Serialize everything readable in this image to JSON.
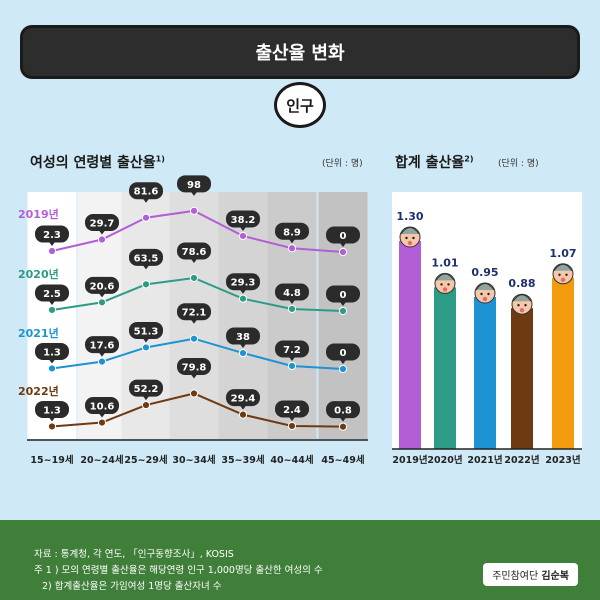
{
  "title": "출산율 변화",
  "badge": "인구",
  "left_chart": {
    "title": "여성의 연령별 출산율",
    "title_sup": "1)",
    "unit": "(단위 : 명)"
  },
  "right_chart": {
    "title": "합계 출산율",
    "title_sup": "2)",
    "unit": "(단위 : 명)"
  },
  "chart_data": [
    {
      "type": "line",
      "title": "여성의 연령별 출산율1)",
      "categories": [
        "15~19세",
        "20~24세",
        "25~29세",
        "30~34세",
        "35~39세",
        "40~44세",
        "45~49세"
      ],
      "series": [
        {
          "name": "2019년",
          "color": "#b35ed6",
          "values": [
            2.3,
            29.7,
            81.6,
            98,
            38.2,
            8.9,
            0
          ]
        },
        {
          "name": "2020년",
          "color": "#2e9b87",
          "values": [
            2.5,
            20.6,
            63.5,
            78.6,
            29.3,
            4.8,
            0
          ]
        },
        {
          "name": "2021년",
          "color": "#1d93d2",
          "values": [
            1.3,
            17.6,
            51.3,
            72.1,
            38,
            7.2,
            0
          ]
        },
        {
          "name": "2022년",
          "color": "#6e3a12",
          "values": [
            1.3,
            10.6,
            52.2,
            79.8,
            29.4,
            2.4,
            0.8
          ]
        }
      ],
      "labels": [
        "2.3",
        "29.7",
        "81.6",
        "98",
        "38.2",
        "8.9",
        "0",
        "2.5",
        "20.6",
        "63.5",
        "78.6",
        "29.3",
        "4.8",
        "0",
        "1.3",
        "17.6",
        "51.3",
        "72.1",
        "38",
        "7.2",
        "0",
        "1.3",
        "10.6",
        "52.2",
        "79.8",
        "29.4",
        "2.4",
        "0.8"
      ]
    },
    {
      "type": "bar",
      "title": "합계 출산율2)",
      "categories": [
        "2019년",
        "2020년",
        "2021년",
        "2022년",
        "2023년"
      ],
      "values": [
        1.3,
        1.01,
        0.95,
        0.88,
        1.07
      ],
      "value_labels": [
        "1.30",
        "1.01",
        "0.95",
        "0.88",
        "1.07"
      ],
      "colors": [
        "#b35ed6",
        "#2e9b87",
        "#1d93d2",
        "#6e3a12",
        "#f29b0c"
      ]
    }
  ],
  "footer": {
    "source": "자료 : 통계청, 각 연도, 「인구동향조사」, KOSIS",
    "note1": "주 1 ) 모의 연령별 출산율은 해당연령 인구 1,000명당 출산한 여성의 수",
    "note2": "2) 합계출산율은 가임여성 1명당 출산자녀 수",
    "credit_prefix": "주민참여단",
    "credit_name": "김순복"
  }
}
